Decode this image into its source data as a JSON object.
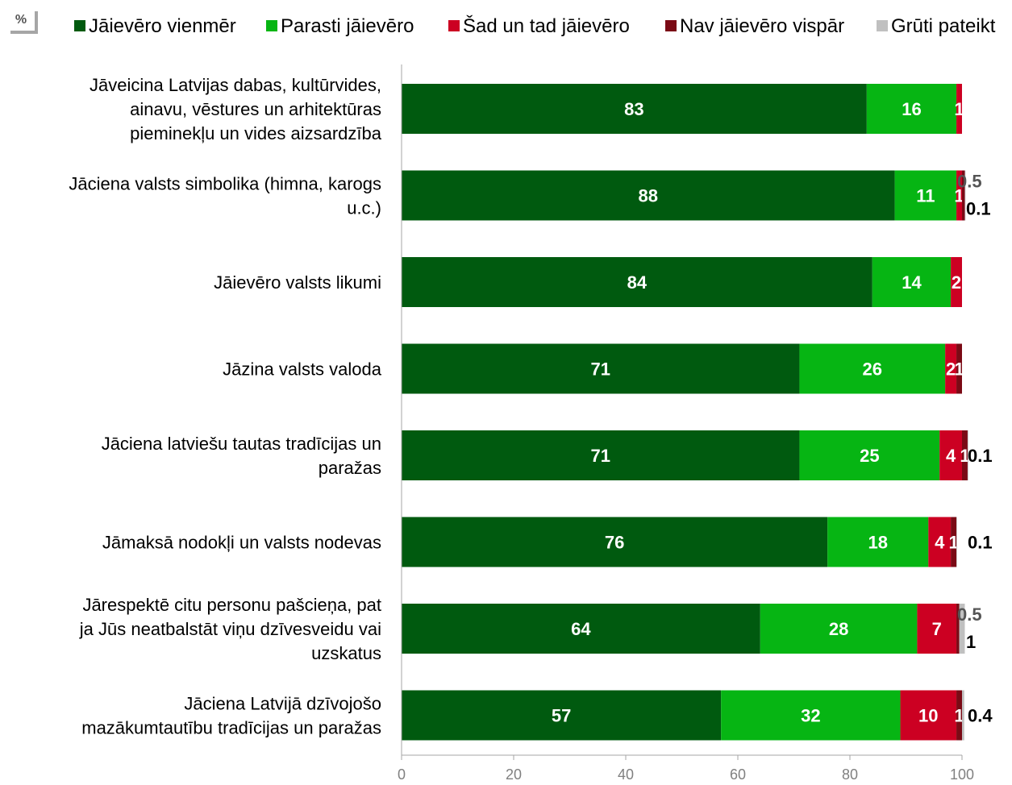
{
  "chart_data": {
    "type": "bar",
    "orientation": "horizontal",
    "stacked": true,
    "unit_label": "%",
    "legend_position": "top",
    "xlim": [
      0,
      100
    ],
    "xticks": [
      0,
      20,
      40,
      60,
      80,
      100
    ],
    "grid": false,
    "categories": [
      "Jāveicina Latvijas dabas, kultūrvides, ainavu, vēstures un arhitektūras pieminekļu un vides aizsardzība",
      "Jāciena valsts simbolika (himna, karogs u.c.)",
      "Jāievēro valsts likumi",
      "Jāzina valsts valoda",
      "Jāciena latviešu tautas tradīcijas un paražas",
      "Jāmaksā nodokļi un valsts nodevas",
      "Jārespektē citu personu pašcieņa, pat ja Jūs neatbalstāt viņu dzīvesveidu vai uzskatus",
      "Jāciena Latvijā dzīvojošo mazākumtautību tradīcijas un paražas"
    ],
    "category_lines": [
      [
        "Jāveicina Latvijas dabas, kultūrvides,",
        "ainavu, vēstures un arhitektūras",
        "pieminekļu un vides aizsardzība"
      ],
      [
        "Jāciena valsts simbolika (himna, karogs",
        "u.c.)"
      ],
      [
        "Jāievēro valsts likumi"
      ],
      [
        "Jāzina valsts valoda"
      ],
      [
        "Jāciena latviešu tautas tradīcijas un",
        "paražas"
      ],
      [
        "Jāmaksā nodokļi un valsts nodevas"
      ],
      [
        "Jārespektē citu personu pašcieņa, pat",
        "ja Jūs neatbalstāt viņu dzīvesveidu vai",
        "uzskatus"
      ],
      [
        "Jāciena Latvijā dzīvojošo",
        "mazākumtautību tradīcijas un paražas"
      ]
    ],
    "series": [
      {
        "name": "Jāievēro vienmēr",
        "color": "#005a0f",
        "values": [
          83,
          88,
          84,
          71,
          71,
          76,
          64,
          57
        ]
      },
      {
        "name": "Parasti jāievēro",
        "color": "#06b513",
        "values": [
          16,
          11,
          14,
          26,
          25,
          18,
          28,
          32
        ]
      },
      {
        "name": "Šad un tad jāievēro",
        "color": "#cc0022",
        "values": [
          1,
          1,
          2,
          2,
          4,
          4,
          7,
          10
        ]
      },
      {
        "name": "Nav jāievēro vispār",
        "color": "#7a0a15",
        "values": [
          0,
          0.5,
          0,
          1,
          1,
          1,
          0.5,
          1
        ]
      },
      {
        "name": "Grūti pateikt",
        "color": "#c0c0c0",
        "values": [
          0,
          0.1,
          0,
          0,
          0.1,
          0.1,
          1,
          0.4
        ]
      }
    ],
    "segment_labels": [
      [
        "83",
        "16",
        "1",
        "",
        ""
      ],
      [
        "88",
        "11",
        "1",
        "",
        ""
      ],
      [
        "84",
        "14",
        "2",
        "",
        ""
      ],
      [
        "71",
        "26",
        "2",
        "1",
        ""
      ],
      [
        "71",
        "25",
        "4",
        "1",
        ""
      ],
      [
        "76",
        "18",
        "4",
        "1",
        ""
      ],
      [
        "64",
        "28",
        "7",
        "",
        ""
      ],
      [
        "57",
        "32",
        "10",
        "1",
        ""
      ]
    ],
    "outside_labels": [
      [],
      [
        {
          "text": "0.5",
          "color": "#555555"
        },
        {
          "text": "0.1",
          "color": "#000000"
        }
      ],
      [],
      [],
      [
        {
          "text": "0.1",
          "color": "#000000"
        }
      ],
      [
        {
          "text": "0.1",
          "color": "#000000"
        }
      ],
      [
        {
          "text": "0.5",
          "color": "#555555"
        },
        {
          "text": "1",
          "color": "#000000"
        }
      ],
      [
        {
          "text": "0.4",
          "color": "#000000"
        }
      ]
    ]
  }
}
